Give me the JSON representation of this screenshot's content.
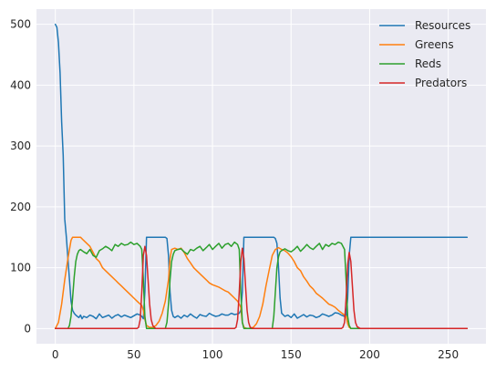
{
  "chart_data": {
    "type": "line",
    "title": "",
    "xlabel": "",
    "ylabel": "",
    "xlim": [
      -12,
      274
    ],
    "ylim": [
      -25,
      525
    ],
    "xticks": [
      0,
      50,
      100,
      150,
      200,
      250
    ],
    "yticks": [
      0,
      100,
      200,
      300,
      400,
      500
    ],
    "grid": true,
    "background": "#eaeaf2",
    "legend_position": "top-right",
    "series": [
      {
        "name": "Resources",
        "color": "#1f77b4",
        "x": [
          0,
          1,
          2,
          3,
          4,
          5,
          6,
          7,
          8,
          9,
          10,
          11,
          12,
          13,
          14,
          15,
          16,
          17,
          18,
          19,
          20,
          22,
          24,
          26,
          28,
          30,
          32,
          34,
          36,
          38,
          40,
          42,
          44,
          46,
          48,
          50,
          52,
          54,
          55,
          56,
          57,
          58,
          60,
          62,
          64,
          66,
          68,
          70,
          71,
          72,
          73,
          74,
          75,
          76,
          78,
          80,
          82,
          84,
          86,
          88,
          90,
          92,
          94,
          96,
          98,
          100,
          102,
          104,
          106,
          108,
          110,
          112,
          114,
          116,
          117,
          118,
          119,
          120,
          122,
          124,
          126,
          128,
          130,
          132,
          134,
          136,
          138,
          139,
          140,
          141,
          142,
          143,
          144,
          146,
          148,
          150,
          152,
          154,
          156,
          158,
          160,
          162,
          164,
          166,
          168,
          170,
          172,
          174,
          176,
          178,
          180,
          182,
          184,
          185,
          186,
          187,
          188,
          190,
          195,
          200,
          210,
          220,
          230,
          240,
          250,
          262
        ],
        "y": [
          500,
          495,
          470,
          420,
          340,
          285,
          180,
          150,
          115,
          80,
          45,
          30,
          25,
          22,
          20,
          18,
          22,
          16,
          20,
          19,
          18,
          22,
          20,
          16,
          24,
          18,
          20,
          22,
          17,
          21,
          23,
          19,
          22,
          20,
          18,
          21,
          24,
          22,
          20,
          16,
          60,
          150,
          150,
          150,
          150,
          150,
          150,
          150,
          148,
          120,
          60,
          30,
          20,
          18,
          21,
          17,
          22,
          19,
          24,
          20,
          17,
          23,
          21,
          20,
          25,
          22,
          20,
          21,
          24,
          22,
          22,
          25,
          23,
          24,
          25,
          30,
          60,
          150,
          150,
          150,
          150,
          150,
          150,
          150,
          150,
          150,
          150,
          150,
          148,
          140,
          100,
          50,
          25,
          20,
          22,
          18,
          24,
          17,
          20,
          23,
          19,
          22,
          21,
          18,
          20,
          24,
          22,
          20,
          22,
          26,
          25,
          22,
          20,
          20,
          50,
          120,
          150,
          150,
          150,
          150,
          150,
          150,
          150,
          150,
          150,
          150
        ]
      },
      {
        "name": "Greens",
        "color": "#ff7f0e",
        "x": [
          0,
          2,
          4,
          6,
          8,
          10,
          11,
          12,
          14,
          16,
          18,
          20,
          22,
          24,
          26,
          28,
          30,
          32,
          34,
          36,
          38,
          40,
          42,
          44,
          46,
          48,
          50,
          52,
          54,
          55,
          56,
          57,
          58,
          60,
          62,
          64,
          66,
          68,
          70,
          72,
          73,
          74,
          76,
          78,
          80,
          82,
          84,
          86,
          88,
          90,
          92,
          94,
          96,
          98,
          100,
          102,
          104,
          106,
          108,
          110,
          112,
          114,
          116,
          117,
          118,
          119,
          120,
          122,
          124,
          126,
          128,
          130,
          132,
          134,
          136,
          138,
          140,
          142,
          144,
          146,
          148,
          150,
          152,
          154,
          156,
          158,
          160,
          162,
          164,
          166,
          168,
          170,
          172,
          174,
          176,
          178,
          180,
          182,
          184,
          185,
          186,
          187,
          188,
          190,
          200,
          210,
          220,
          230,
          240,
          250,
          262
        ],
        "y": [
          0,
          10,
          40,
          80,
          115,
          145,
          150,
          150,
          150,
          150,
          145,
          140,
          135,
          125,
          115,
          110,
          100,
          95,
          90,
          85,
          80,
          75,
          70,
          65,
          60,
          55,
          50,
          45,
          40,
          38,
          30,
          15,
          5,
          2,
          2,
          5,
          12,
          25,
          45,
          80,
          115,
          130,
          132,
          130,
          132,
          125,
          115,
          108,
          100,
          95,
          90,
          85,
          80,
          75,
          72,
          70,
          68,
          65,
          62,
          60,
          55,
          50,
          45,
          40,
          35,
          10,
          2,
          0,
          0,
          2,
          8,
          20,
          40,
          70,
          95,
          120,
          130,
          133,
          130,
          128,
          124,
          118,
          110,
          100,
          95,
          85,
          78,
          70,
          65,
          58,
          54,
          50,
          45,
          40,
          38,
          35,
          30,
          26,
          22,
          20,
          8,
          2,
          0,
          0,
          0,
          0,
          0,
          0,
          0,
          0,
          0
        ]
      },
      {
        "name": "Reds",
        "color": "#2ca02c",
        "x": [
          0,
          5,
          8,
          9,
          10,
          11,
          12,
          13,
          14,
          15,
          16,
          18,
          20,
          22,
          24,
          26,
          28,
          30,
          32,
          34,
          36,
          38,
          40,
          42,
          44,
          46,
          48,
          50,
          52,
          54,
          55,
          56,
          57,
          58,
          60,
          66,
          70,
          71,
          72,
          73,
          74,
          75,
          76,
          78,
          80,
          82,
          84,
          86,
          88,
          90,
          92,
          94,
          96,
          98,
          100,
          102,
          104,
          106,
          108,
          110,
          112,
          114,
          116,
          117,
          118,
          119,
          120,
          125,
          135,
          138,
          139,
          140,
          141,
          142,
          143,
          144,
          146,
          148,
          150,
          152,
          154,
          156,
          158,
          160,
          162,
          164,
          166,
          168,
          170,
          172,
          174,
          176,
          178,
          180,
          182,
          184,
          185,
          186,
          187,
          188,
          190,
          200,
          210,
          230,
          250,
          262
        ],
        "y": [
          0,
          0,
          0,
          5,
          20,
          50,
          85,
          110,
          122,
          128,
          130,
          126,
          123,
          130,
          120,
          117,
          128,
          131,
          135,
          132,
          128,
          138,
          135,
          140,
          137,
          138,
          142,
          138,
          140,
          135,
          130,
          80,
          20,
          0,
          0,
          0,
          0,
          10,
          40,
          80,
          110,
          122,
          128,
          130,
          131,
          126,
          122,
          130,
          128,
          132,
          135,
          128,
          133,
          138,
          130,
          135,
          140,
          132,
          138,
          140,
          135,
          142,
          138,
          130,
          60,
          10,
          0,
          0,
          0,
          0,
          20,
          60,
          100,
          118,
          126,
          128,
          131,
          128,
          126,
          130,
          135,
          127,
          132,
          138,
          133,
          130,
          135,
          140,
          130,
          138,
          135,
          140,
          138,
          142,
          140,
          130,
          80,
          20,
          5,
          0,
          0,
          0,
          0,
          0,
          0,
          0
        ]
      },
      {
        "name": "Predators",
        "color": "#d62728",
        "x": [
          0,
          50,
          52,
          53,
          54,
          55,
          56,
          57,
          58,
          59,
          60,
          61,
          62,
          63,
          64,
          66,
          70,
          100,
          112,
          114,
          115,
          116,
          117,
          118,
          119,
          120,
          121,
          122,
          123,
          124,
          126,
          130,
          170,
          180,
          182,
          183,
          184,
          185,
          186,
          187,
          188,
          189,
          190,
          191,
          192,
          194,
          200,
          262
        ],
        "y": [
          0,
          0,
          0,
          2,
          15,
          60,
          120,
          135,
          120,
          80,
          40,
          15,
          5,
          2,
          0,
          0,
          0,
          0,
          0,
          0,
          2,
          15,
          60,
          110,
          132,
          115,
          70,
          30,
          10,
          2,
          0,
          0,
          0,
          0,
          0,
          2,
          10,
          50,
          105,
          125,
          110,
          70,
          30,
          10,
          3,
          0,
          0,
          0
        ]
      }
    ]
  }
}
